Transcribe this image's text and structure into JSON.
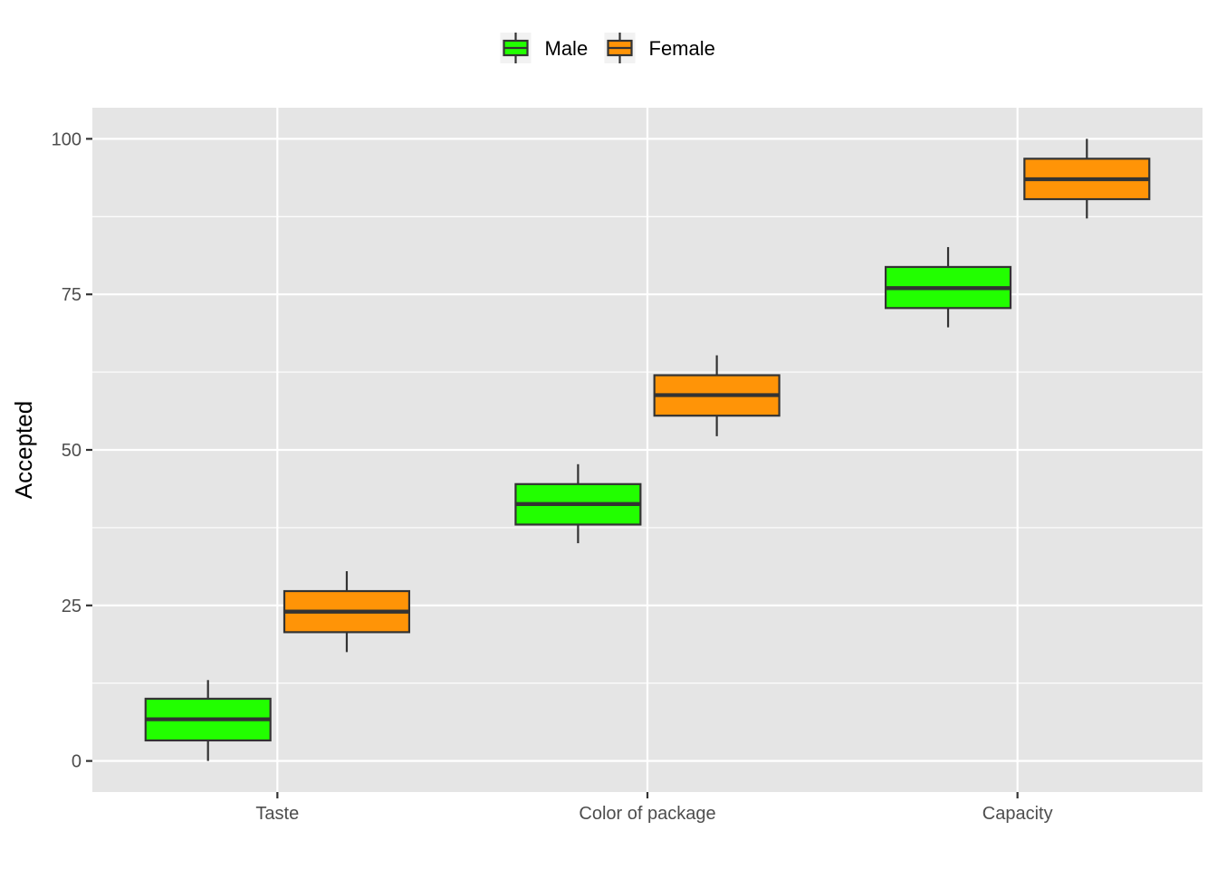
{
  "chart_data": {
    "type": "boxplot",
    "title": "",
    "xlabel": "",
    "ylabel": "Accepted",
    "ylim": [
      -5,
      105
    ],
    "yticks": [
      0,
      25,
      50,
      75,
      100
    ],
    "grid": true,
    "legend_position": "top",
    "categories": [
      "Taste",
      "Color of package",
      "Capacity"
    ],
    "series": [
      {
        "name": "Male",
        "color": "#22ff00",
        "boxes": [
          {
            "category": "Taste",
            "min": 0,
            "q1": 3.3,
            "median": 6.7,
            "q3": 10,
            "max": 13
          },
          {
            "category": "Color of package",
            "min": 35,
            "q1": 38,
            "median": 41.3,
            "q3": 44.5,
            "max": 47.7
          },
          {
            "category": "Capacity",
            "min": 69.7,
            "q1": 72.8,
            "median": 76,
            "q3": 79.4,
            "max": 82.6
          }
        ]
      },
      {
        "name": "Female",
        "color": "#ff9407",
        "boxes": [
          {
            "category": "Taste",
            "min": 17.5,
            "q1": 20.7,
            "median": 24,
            "q3": 27.3,
            "max": 30.5
          },
          {
            "category": "Color of package",
            "min": 52.2,
            "q1": 55.5,
            "median": 58.8,
            "q3": 62,
            "max": 65.2
          },
          {
            "category": "Capacity",
            "min": 87.2,
            "q1": 90.3,
            "median": 93.5,
            "q3": 96.8,
            "max": 100
          }
        ]
      }
    ]
  }
}
